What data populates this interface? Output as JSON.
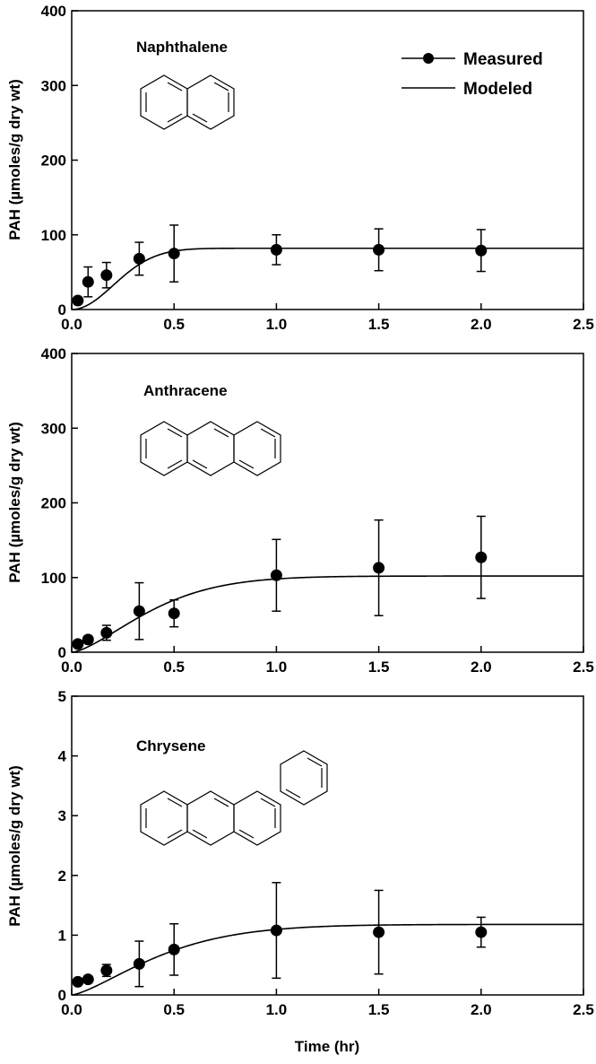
{
  "chart_data": [
    {
      "type": "scatter",
      "title": "Naphthalene",
      "xlabel": "",
      "ylabel": "PAH (µmoles/g dry wt)",
      "xlim": [
        0,
        2.5
      ],
      "ylim": [
        0,
        400
      ],
      "xticks": [
        "0.0",
        "0.5",
        "1.0",
        "1.5",
        "2.0",
        "2.5"
      ],
      "yticks": [
        "0",
        "100",
        "200",
        "300",
        "400"
      ],
      "grid": false,
      "legend": "top-right",
      "series": [
        {
          "name": "Measured",
          "style": "markers",
          "x": [
            0.03,
            0.08,
            0.17,
            0.33,
            0.5,
            1.0,
            1.5,
            2.0
          ],
          "y": [
            12,
            37,
            46,
            68,
            75,
            80,
            80,
            79
          ],
          "yerr": [
            3,
            20,
            17,
            22,
            38,
            20,
            28,
            28
          ]
        },
        {
          "name": "Modeled",
          "style": "line",
          "plateau": 82,
          "k": 3.5,
          "pow": 2
        }
      ]
    },
    {
      "type": "scatter",
      "title": "Anthracene",
      "xlabel": "",
      "ylabel": "PAH (µmoles/g dry wt)",
      "xlim": [
        0,
        2.5
      ],
      "ylim": [
        0,
        400
      ],
      "xticks": [
        "0.0",
        "0.5",
        "1.0",
        "1.5",
        "2.0",
        "2.5"
      ],
      "yticks": [
        "0",
        "100",
        "200",
        "300",
        "400"
      ],
      "grid": false,
      "series": [
        {
          "style": "markers",
          "x": [
            0.03,
            0.08,
            0.17,
            0.33,
            0.5,
            1.0,
            1.5,
            2.0
          ],
          "y": [
            11,
            17,
            26,
            55,
            52,
            103,
            113,
            127
          ],
          "yerr": [
            3,
            4,
            10,
            38,
            18,
            48,
            64,
            55
          ]
        },
        {
          "style": "line",
          "plateau": 102,
          "k": 2.2,
          "pow": 1.5
        }
      ]
    },
    {
      "type": "scatter",
      "title": "Chrysene",
      "xlabel": "Time (hr)",
      "ylabel": "PAH (µmoles/g dry wt)",
      "xlim": [
        0,
        2.5
      ],
      "ylim": [
        0,
        5
      ],
      "xticks": [
        "0.0",
        "0.5",
        "1.0",
        "1.5",
        "2.0",
        "2.5"
      ],
      "yticks": [
        "0",
        "1",
        "2",
        "3",
        "4",
        "5"
      ],
      "grid": false,
      "series": [
        {
          "style": "markers",
          "x": [
            0.03,
            0.08,
            0.17,
            0.33,
            0.5,
            1.0,
            1.5,
            2.0
          ],
          "y": [
            0.22,
            0.26,
            0.41,
            0.52,
            0.76,
            1.08,
            1.05,
            1.05
          ],
          "yerr": [
            0.04,
            0.05,
            0.1,
            0.38,
            0.43,
            0.8,
            0.7,
            0.25
          ]
        },
        {
          "style": "line",
          "plateau": 1.18,
          "k": 2.0,
          "pow": 1.4
        }
      ]
    }
  ],
  "colors": {
    "ink": "#000000",
    "background": "#ffffff"
  }
}
